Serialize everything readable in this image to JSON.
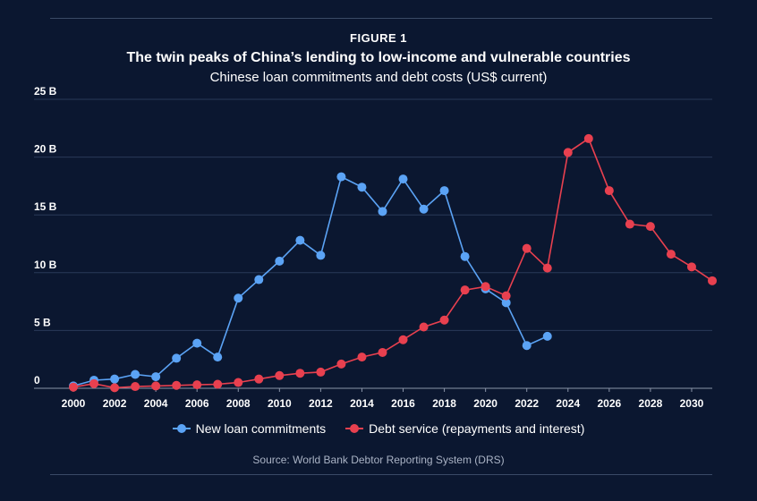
{
  "figure_label": "FIGURE 1",
  "chart_data": {
    "type": "line",
    "title": "The twin peaks of China’s lending to low-income and vulnerable countries",
    "subtitle": "Chinese loan commitments and debt costs (US$ current)",
    "xlabel": "",
    "ylabel": "",
    "ylim": [
      0,
      25
    ],
    "xlim": [
      2000,
      2031
    ],
    "y_ticks": [
      {
        "value": 0,
        "label": "0"
      },
      {
        "value": 5,
        "label": "5 B"
      },
      {
        "value": 10,
        "label": "10 B"
      },
      {
        "value": 15,
        "label": "15 B"
      },
      {
        "value": 20,
        "label": "20 B"
      },
      {
        "value": 25,
        "label": "25 B"
      }
    ],
    "x_ticks": [
      {
        "value": 2000,
        "label": "2000"
      },
      {
        "value": 2002,
        "label": "2002"
      },
      {
        "value": 2004,
        "label": "2004"
      },
      {
        "value": 2006,
        "label": "2006"
      },
      {
        "value": 2008,
        "label": "2008"
      },
      {
        "value": 2010,
        "label": "2010"
      },
      {
        "value": 2012,
        "label": "2012"
      },
      {
        "value": 2014,
        "label": "2014"
      },
      {
        "value": 2016,
        "label": "2016"
      },
      {
        "value": 2018,
        "label": "2018"
      },
      {
        "value": 2020,
        "label": "2020"
      },
      {
        "value": 2022,
        "label": "2022"
      },
      {
        "value": 2024,
        "label": "2024"
      },
      {
        "value": 2026,
        "label": "2026"
      },
      {
        "value": 2028,
        "label": "2028"
      },
      {
        "value": 2030,
        "label": "2030"
      }
    ],
    "grid": true,
    "legend_position": "bottom",
    "series": [
      {
        "name": "New loan commitments",
        "color": "#5ba3f5",
        "x": [
          2000,
          2001,
          2002,
          2003,
          2004,
          2005,
          2006,
          2007,
          2008,
          2009,
          2010,
          2011,
          2012,
          2013,
          2014,
          2015,
          2016,
          2017,
          2018,
          2019,
          2020,
          2021,
          2022,
          2023
        ],
        "values": [
          0.2,
          0.7,
          0.8,
          1.2,
          1.0,
          2.6,
          3.9,
          2.7,
          7.8,
          9.4,
          11.0,
          12.8,
          11.5,
          18.3,
          17.4,
          15.3,
          18.1,
          15.5,
          17.1,
          11.4,
          8.6,
          7.4,
          3.7,
          4.5
        ]
      },
      {
        "name": "Debt service (repayments and interest)",
        "color": "#e8404f",
        "x": [
          2000,
          2001,
          2002,
          2003,
          2004,
          2005,
          2006,
          2007,
          2008,
          2009,
          2010,
          2011,
          2012,
          2013,
          2014,
          2015,
          2016,
          2017,
          2018,
          2019,
          2020,
          2021,
          2022,
          2023,
          2024,
          2025,
          2026,
          2027,
          2028,
          2029,
          2030,
          2031
        ],
        "values": [
          0.1,
          0.4,
          0.05,
          0.15,
          0.2,
          0.25,
          0.3,
          0.35,
          0.5,
          0.8,
          1.1,
          1.3,
          1.4,
          2.1,
          2.7,
          3.1,
          4.2,
          5.3,
          5.9,
          8.5,
          8.8,
          8.0,
          12.1,
          10.4,
          20.4,
          21.6,
          17.1,
          14.2,
          14.0,
          11.6,
          10.5,
          9.3
        ]
      }
    ]
  },
  "source": "Source: World Bank Debtor Reporting System (DRS)"
}
